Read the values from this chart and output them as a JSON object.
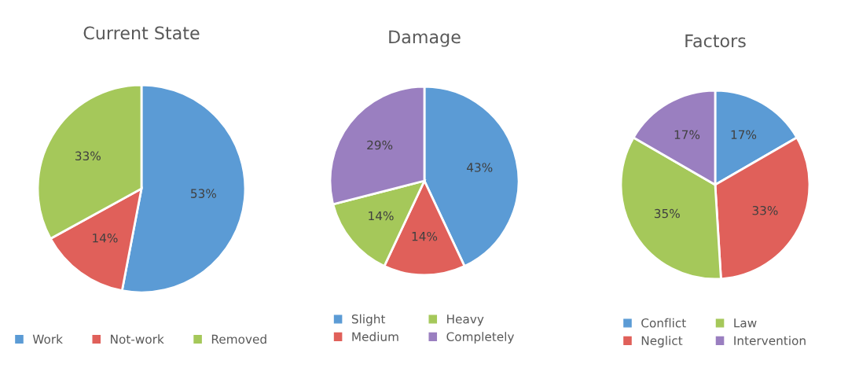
{
  "chart_data": [
    {
      "type": "pie",
      "title": "Current State",
      "categories": [
        "Work",
        "Not-work",
        "Removed"
      ],
      "values": [
        53,
        14,
        33
      ],
      "value_labels": [
        "53%",
        "14%",
        "33%"
      ],
      "colors": [
        "#5b9bd5",
        "#e0605a",
        "#a5c85a"
      ],
      "legend": "bottom"
    },
    {
      "type": "pie",
      "title": "Damage",
      "categories": [
        "Slight",
        "Medium",
        "Heavy",
        "Completely"
      ],
      "values": [
        43,
        14,
        14,
        29
      ],
      "value_labels": [
        "43%",
        "14%",
        "14%",
        "29%"
      ],
      "colors": [
        "#5b9bd5",
        "#e0605a",
        "#a5c85a",
        "#9a7fc0"
      ],
      "legend": "bottom"
    },
    {
      "type": "pie",
      "title": "Factors",
      "categories": [
        "Conflict",
        "Neglict",
        "Law",
        "Intervention"
      ],
      "values": [
        17,
        33,
        35,
        17
      ],
      "value_labels": [
        "17%",
        "33%",
        "35%",
        "17%"
      ],
      "colors": [
        "#5b9bd5",
        "#e0605a",
        "#a5c85a",
        "#9a7fc0"
      ],
      "legend": "bottom"
    }
  ]
}
